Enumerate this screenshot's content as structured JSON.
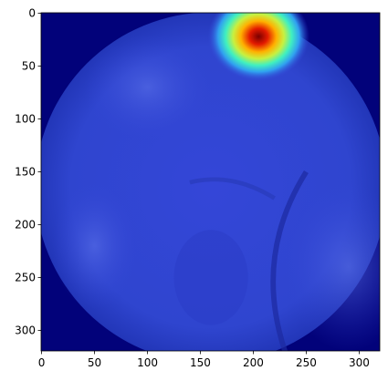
{
  "chart_data": {
    "type": "image",
    "xlim": [
      -0.5,
      319.5
    ],
    "ylim": [
      319.5,
      -0.5
    ],
    "xticks": [
      0,
      50,
      100,
      150,
      200,
      250,
      300
    ],
    "yticks": [
      0,
      50,
      100,
      150,
      200,
      250,
      300
    ]
  }
}
